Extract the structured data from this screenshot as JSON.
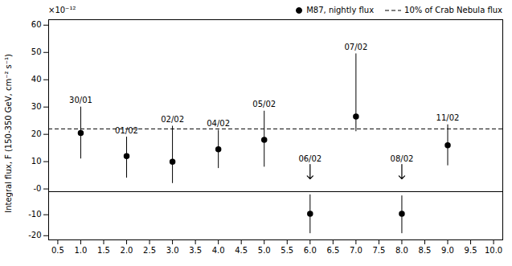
{
  "chart_data": [
    {
      "type": "scatter",
      "ylabel": "Integral flux, F (150-350 GeV, cm⁻² s⁻¹)",
      "annotation": "×10⁻¹²",
      "legend": "upper right",
      "tick_labels": "y",
      "xlim": [
        0.3,
        10.2
      ],
      "ylim": [
        -1,
        62
      ],
      "yticks": [
        {
          "value": 0,
          "label": "-0"
        },
        10,
        20,
        30,
        40,
        50,
        60
      ],
      "series": [
        {
          "name": "M87, nightly flux",
          "color": "#000000",
          "marker": "circle",
          "x": [
            1,
            2,
            3,
            4,
            5,
            7,
            9
          ],
          "values": [
            20.5,
            12.0,
            10.0,
            14.5,
            18.0,
            26.5,
            16.0
          ],
          "yerr_lo": [
            9.5,
            8.0,
            8.0,
            7.0,
            10.0,
            5.5,
            7.5
          ],
          "yerr_hi": [
            9.5,
            7.0,
            13.0,
            7.0,
            10.5,
            23.0,
            7.5
          ],
          "point_labels": [
            "30/01",
            "01/02",
            "02/02",
            "04/02",
            "05/02",
            "07/02",
            "11/02"
          ]
        }
      ],
      "upper_limits": {
        "x": [
          6,
          8
        ],
        "values": [
          9.0,
          9.0
        ],
        "point_labels": [
          "06/02",
          "08/02"
        ]
      },
      "reference_line": {
        "y": 22,
        "name": "10% of Crab Nebula flux",
        "color": "#000000",
        "line_style": "dashed"
      }
    },
    {
      "type": "scatter",
      "xlim": [
        0.3,
        10.2
      ],
      "ylim": [
        -22,
        1
      ],
      "yticks": [
        -20,
        -10
      ],
      "xticks": [
        0.5,
        {
          "value": 1,
          "label": "1.0"
        },
        1.5,
        {
          "value": 2,
          "label": "2.0"
        },
        2.5,
        {
          "value": 3,
          "label": "3.0"
        },
        3.5,
        {
          "value": 4,
          "label": "4.0"
        },
        4.5,
        {
          "value": 5,
          "label": "5.0"
        },
        5.5,
        {
          "value": 6,
          "label": "6.0"
        },
        6.5,
        {
          "value": 7,
          "label": "7.0"
        },
        7.5,
        {
          "value": 8,
          "label": "8.0"
        },
        8.5,
        {
          "value": 9,
          "label": "9.0"
        },
        9.5,
        {
          "value": 10,
          "label": "10.0"
        }
      ],
      "series": [
        {
          "color": "#000000",
          "marker": "circle",
          "x": [
            6,
            8
          ],
          "values": [
            -9.5,
            -9.5
          ],
          "yerr_lo": [
            9.5,
            9.5
          ],
          "yerr_hi": [
            9.0,
            8.5
          ]
        }
      ]
    }
  ]
}
